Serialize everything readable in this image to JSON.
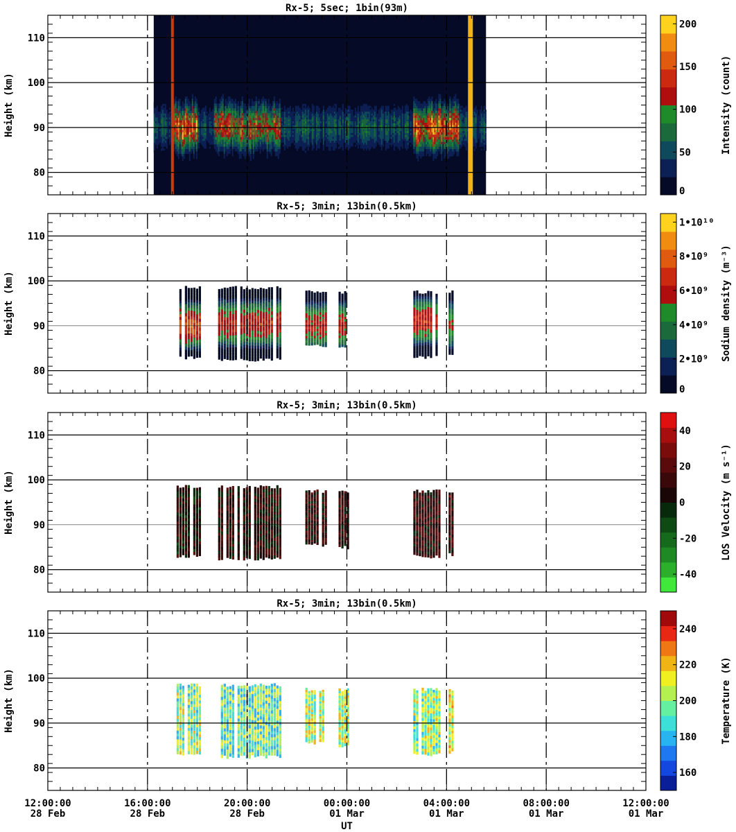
{
  "chart_data": {
    "type": "heatmap",
    "xlabel": "UT",
    "x_range": [
      "2025-02-28 12:00:00",
      "2025-03-01 12:00:00"
    ],
    "x_ticks": [
      {
        "time": "12:00:00",
        "date": "28 Feb"
      },
      {
        "time": "16:00:00",
        "date": "28 Feb"
      },
      {
        "time": "20:00:00",
        "date": "28 Feb"
      },
      {
        "time": "00:00:00",
        "date": "01 Mar"
      },
      {
        "time": "04:00:00",
        "date": "01 Mar"
      },
      {
        "time": "08:00:00",
        "date": "01 Mar"
      },
      {
        "time": "12:00:00",
        "date": "01 Mar"
      }
    ],
    "panels": [
      {
        "title": "Rx-5;  5sec; 1bin(93m)",
        "ylabel": "Height (km)",
        "ylim": [
          75,
          115
        ],
        "yticks": [
          80,
          90,
          100,
          110
        ],
        "colorbar": {
          "label": "Intensity (count)",
          "range": [
            0,
            210
          ],
          "ticks": [
            "0",
            "50",
            "100",
            "150",
            "200"
          ],
          "colors": [
            "#050a26",
            "#0c2055",
            "#0e4a5c",
            "#1b6a3c",
            "#1f8a2a",
            "#b00e0e",
            "#cc2a10",
            "#e05a10",
            "#f08c10",
            "#ffd21e"
          ]
        },
        "observation_window": [
          "2025-02-28 16:15",
          "2025-03-01 05:35"
        ],
        "layer_peak_km": 90,
        "layer_extent_km": [
          83,
          98
        ],
        "strong_segments": [
          {
            "start": "2025-02-28 17:00",
            "end": "2025-02-28 18:00",
            "intensity": 200
          },
          {
            "start": "2025-02-28 18:40",
            "end": "2025-02-28 21:20",
            "intensity": 160
          },
          {
            "start": "2025-03-01 02:40",
            "end": "2025-03-01 04:30",
            "intensity": 190
          }
        ],
        "bright_bands": [
          "2025-02-28 17:00",
          "2025-03-01 04:55",
          "2025-03-01 05:00"
        ]
      },
      {
        "title": "Rx-5; 3min; 13bin(0.5km)",
        "ylabel": "Height (km)",
        "ylim": [
          75,
          115
        ],
        "yticks": [
          80,
          90,
          100,
          110
        ],
        "colorbar": {
          "label": "Sodium density (m⁻³)",
          "range": [
            0,
            10500000000.0
          ],
          "ticks": [
            "0",
            "2•10⁹",
            "4•10⁹",
            "6•10⁹",
            "8•10⁹",
            "1•10¹⁰"
          ],
          "colors": [
            "#050a26",
            "#0c2055",
            "#0e4a5c",
            "#1b6a3c",
            "#1f8a2a",
            "#b00e0e",
            "#cc2a10",
            "#e05a10",
            "#f08c10",
            "#ffd21e"
          ]
        },
        "segments": [
          {
            "start": "2025-02-28 17:10",
            "end": "2025-02-28 18:10",
            "bottom": 83,
            "top": 98.5,
            "peak_km": 90,
            "peak_value": 7500000000.0
          },
          {
            "start": "2025-02-28 18:50",
            "end": "2025-02-28 21:20",
            "bottom": 82.5,
            "top": 98.5,
            "peak_km": 90.5,
            "peak_value": 6500000000.0
          },
          {
            "start": "2025-02-28 22:20",
            "end": "2025-02-28 23:10",
            "bottom": 85.5,
            "top": 97.5,
            "peak_km": 90,
            "peak_value": 6000000000.0
          },
          {
            "start": "2025-02-28 23:40",
            "end": "2025-03-01 00:05",
            "bottom": 85,
            "top": 97.5,
            "peak_km": 90,
            "peak_value": 6000000000.0
          },
          {
            "start": "2025-03-01 02:40",
            "end": "2025-03-01 03:45",
            "bottom": 83,
            "top": 97.5,
            "peak_km": 91,
            "peak_value": 6500000000.0
          },
          {
            "start": "2025-03-01 04:05",
            "end": "2025-03-01 04:15",
            "bottom": 83.5,
            "top": 97.5,
            "peak_km": 90,
            "peak_value": 5500000000.0
          }
        ]
      },
      {
        "title": "Rx-5; 3min; 13bin(0.5km)",
        "ylabel": "Height (km)",
        "ylim": [
          75,
          115
        ],
        "yticks": [
          80,
          90,
          100,
          110
        ],
        "colorbar": {
          "label": "LOS Velocity (m s⁻¹)",
          "range": [
            -50,
            50
          ],
          "ticks": [
            "-40",
            "-20",
            "0",
            "20",
            "40"
          ],
          "colors": [
            "#3fe83a",
            "#2cb02c",
            "#1f8a24",
            "#166a1c",
            "#0e4a14",
            "#082a0c",
            "#1a0606",
            "#3a0808",
            "#5a0a0a",
            "#7a0c0c",
            "#a80e0e",
            "#e01010"
          ]
        },
        "segments": [
          {
            "start": "2025-02-28 17:10",
            "end": "2025-02-28 18:10",
            "bottom": 83,
            "top": 98.5,
            "mean_value": 5
          },
          {
            "start": "2025-02-28 18:50",
            "end": "2025-02-28 21:20",
            "bottom": 82.5,
            "top": 98.5,
            "mean_value": 8
          },
          {
            "start": "2025-02-28 22:20",
            "end": "2025-02-28 23:10",
            "bottom": 85.5,
            "top": 97.5,
            "mean_value": 10
          },
          {
            "start": "2025-02-28 23:40",
            "end": "2025-03-01 00:05",
            "bottom": 85,
            "top": 97.5,
            "mean_value": 8
          },
          {
            "start": "2025-03-01 02:40",
            "end": "2025-03-01 03:45",
            "bottom": 83,
            "top": 97.5,
            "mean_value": 10
          },
          {
            "start": "2025-03-01 04:05",
            "end": "2025-03-01 04:15",
            "bottom": 83.5,
            "top": 97.5,
            "mean_value": 12
          }
        ]
      },
      {
        "title": "Rx-5; 3min; 13bin(0.5km)",
        "ylabel": "Height (km)",
        "ylim": [
          75,
          115
        ],
        "yticks": [
          80,
          90,
          100,
          110
        ],
        "colorbar": {
          "label": "Temperature (K)",
          "range": [
            150,
            250
          ],
          "ticks": [
            "160",
            "180",
            "200",
            "220",
            "240"
          ],
          "colors": [
            "#0a1e9a",
            "#1446e0",
            "#1e78f0",
            "#28b4f0",
            "#3ce0d8",
            "#64f0a0",
            "#b4f050",
            "#f0f020",
            "#f0b414",
            "#f07814",
            "#e82814",
            "#a00a0a"
          ]
        },
        "segments": [
          {
            "start": "2025-02-28 17:10",
            "end": "2025-02-28 18:10",
            "bottom": 83,
            "top": 98.5,
            "mean_value": 200
          },
          {
            "start": "2025-02-28 18:50",
            "end": "2025-02-28 21:20",
            "bottom": 82.5,
            "top": 98.5,
            "mean_value": 195
          },
          {
            "start": "2025-02-28 22:20",
            "end": "2025-02-28 23:10",
            "bottom": 85.5,
            "top": 97.5,
            "mean_value": 205
          },
          {
            "start": "2025-02-28 23:40",
            "end": "2025-03-01 00:05",
            "bottom": 85,
            "top": 97.5,
            "mean_value": 205
          },
          {
            "start": "2025-03-01 02:40",
            "end": "2025-03-01 03:45",
            "bottom": 83,
            "top": 97.5,
            "mean_value": 200
          },
          {
            "start": "2025-03-01 04:05",
            "end": "2025-03-01 04:15",
            "bottom": 83.5,
            "top": 97.5,
            "mean_value": 210
          }
        ]
      }
    ]
  }
}
